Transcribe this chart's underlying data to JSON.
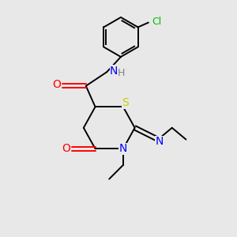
{
  "bg_color": "#e8e8e8",
  "bond_color": "#000000",
  "atom_colors": {
    "O": "#ff0000",
    "N": "#0000ff",
    "S": "#cccc00",
    "Cl": "#00bb00",
    "C": "#000000",
    "H": "#808080"
  },
  "line_width": 1.4,
  "font_size": 9
}
